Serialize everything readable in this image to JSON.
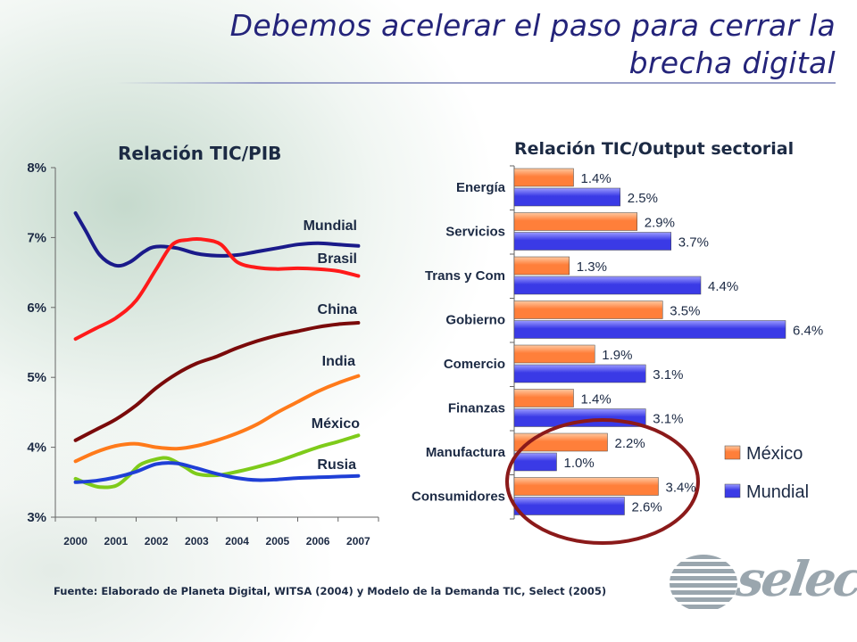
{
  "title": "Debemos acelerar el paso para cerrar la brecha digital",
  "source": "Fuente: Elaborado de Planeta Digital, WITSA (2004) y Modelo de la Demanda TIC, Select (2005)",
  "logo": {
    "text": "select"
  },
  "colors": {
    "title": "#24247a",
    "mundial": "#1a1a8a",
    "brasil": "#ff1a1a",
    "china": "#7a0a0a",
    "india": "#ff7a1a",
    "mexico": "#7ecb1a",
    "rusia": "#1f3fd6",
    "bar_mexico": "#ff7f3a",
    "bar_mundial": "#3a3ae6",
    "highlight_circle": "#8b1a1a"
  },
  "chart_data": [
    {
      "type": "line",
      "title": "Relación TIC/PIB",
      "x": [
        2000,
        2001,
        2002,
        2003,
        2004,
        2005,
        2006,
        2007
      ],
      "x_ticklabels": [
        "2000",
        "2001",
        "2002",
        "2003",
        "2004",
        "2005",
        "2006",
        "2007"
      ],
      "y_ticklabels": [
        "3%",
        "4%",
        "5%",
        "6%",
        "7%",
        "8%"
      ],
      "ylim": [
        3,
        8
      ],
      "xlim": [
        1999.5,
        2007.5
      ],
      "y_unit": "%",
      "grid": false,
      "series": [
        {
          "name": "Mundial",
          "color_key": "mundial",
          "x": [
            2000,
            2000.25,
            2000.6,
            2001,
            2001.35,
            2001.7,
            2002,
            2002.5,
            2003,
            2003.5,
            2004,
            2004.5,
            2005,
            2005.5,
            2006,
            2006.5,
            2007
          ],
          "values": [
            7.35,
            7.1,
            6.75,
            6.6,
            6.65,
            6.8,
            6.87,
            6.85,
            6.77,
            6.74,
            6.75,
            6.8,
            6.85,
            6.9,
            6.92,
            6.9,
            6.88
          ]
        },
        {
          "name": "Brasil",
          "color_key": "brasil",
          "x": [
            2000,
            2000.5,
            2001,
            2001.5,
            2002,
            2002.4,
            2002.8,
            2003.2,
            2003.6,
            2004,
            2004.5,
            2005,
            2005.5,
            2006,
            2006.5,
            2007
          ],
          "values": [
            5.55,
            5.7,
            5.85,
            6.1,
            6.55,
            6.9,
            6.97,
            6.97,
            6.9,
            6.65,
            6.57,
            6.55,
            6.56,
            6.55,
            6.52,
            6.45
          ]
        },
        {
          "name": "China",
          "color_key": "china",
          "x": [
            2000,
            2000.5,
            2001,
            2001.5,
            2002,
            2002.5,
            2003,
            2003.5,
            2004,
            2004.5,
            2005,
            2005.5,
            2006,
            2006.5,
            2007
          ],
          "values": [
            4.1,
            4.25,
            4.4,
            4.6,
            4.85,
            5.05,
            5.2,
            5.3,
            5.42,
            5.52,
            5.6,
            5.66,
            5.72,
            5.76,
            5.78
          ]
        },
        {
          "name": "India",
          "color_key": "india",
          "x": [
            2000,
            2000.5,
            2001,
            2001.5,
            2002,
            2002.5,
            2003,
            2003.5,
            2004,
            2004.5,
            2005,
            2005.5,
            2006,
            2006.5,
            2007
          ],
          "values": [
            3.8,
            3.93,
            4.02,
            4.05,
            4.0,
            3.98,
            4.02,
            4.1,
            4.2,
            4.33,
            4.5,
            4.65,
            4.8,
            4.92,
            5.02
          ]
        },
        {
          "name": "México",
          "color_key": "mexico",
          "x": [
            2000,
            2000.3,
            2000.6,
            2001,
            2001.3,
            2001.6,
            2002,
            2002.3,
            2002.7,
            2003,
            2003.5,
            2004,
            2004.5,
            2005,
            2005.5,
            2006,
            2006.5,
            2007
          ],
          "values": [
            3.55,
            3.48,
            3.43,
            3.45,
            3.58,
            3.75,
            3.83,
            3.84,
            3.72,
            3.62,
            3.6,
            3.65,
            3.72,
            3.8,
            3.9,
            4.0,
            4.08,
            4.17
          ]
        },
        {
          "name": "Rusia",
          "color_key": "rusia",
          "x": [
            2000,
            2000.5,
            2001,
            2001.5,
            2002,
            2002.5,
            2003,
            2003.5,
            2004,
            2004.5,
            2005,
            2005.5,
            2006,
            2006.5,
            2007
          ],
          "values": [
            3.5,
            3.52,
            3.57,
            3.65,
            3.76,
            3.77,
            3.7,
            3.62,
            3.56,
            3.53,
            3.54,
            3.56,
            3.57,
            3.58,
            3.59
          ]
        }
      ]
    },
    {
      "type": "bar",
      "orientation": "horizontal",
      "title": "Relación TIC/Output sectorial",
      "categories": [
        "Energía",
        "Servicios",
        "Trans y Com",
        "Gobierno",
        "Comercio",
        "Finanzas",
        "Manufactura",
        "Consumidores"
      ],
      "xlim": [
        0,
        7.2
      ],
      "y_unit": "%",
      "legend": "bottom-right",
      "grid": false,
      "series": [
        {
          "name": "México",
          "color_key": "bar_mexico",
          "values": [
            1.4,
            2.9,
            1.3,
            3.5,
            1.9,
            1.4,
            2.2,
            3.4
          ],
          "labels": [
            "1.4%",
            "2.9%",
            "1.3%",
            "3.5%",
            "1.9%",
            "1.4%",
            "2.2%",
            "3.4%"
          ]
        },
        {
          "name": "Mundial",
          "color_key": "bar_mundial",
          "values": [
            2.5,
            3.7,
            4.4,
            6.4,
            3.1,
            3.1,
            1.0,
            2.6
          ],
          "labels": [
            "2.5%",
            "3.7%",
            "4.4%",
            "6.4%",
            "3.1%",
            "3.1%",
            "1.0%",
            "2.6%"
          ]
        }
      ]
    }
  ]
}
